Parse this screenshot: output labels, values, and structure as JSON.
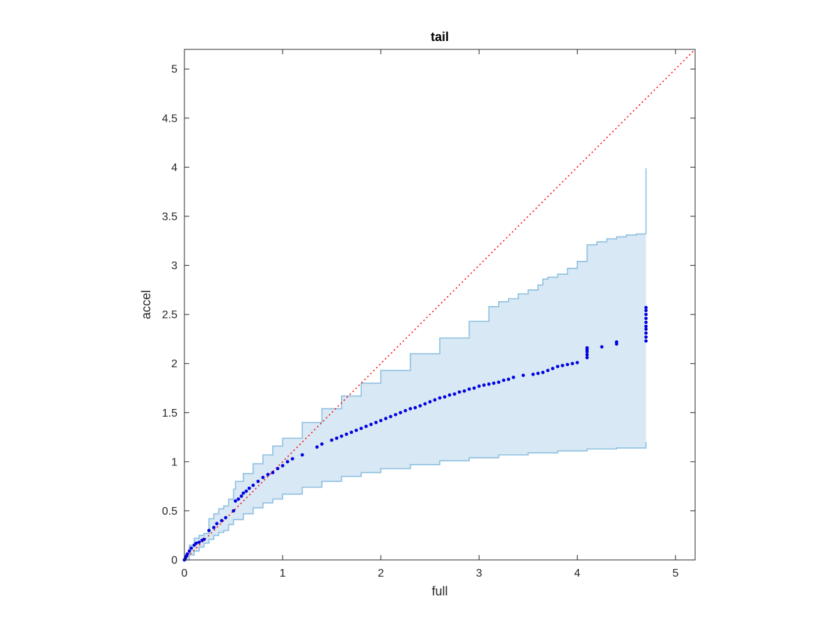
{
  "chart_data": {
    "type": "scatter",
    "title": "tail",
    "xlabel": "full",
    "ylabel": "accel",
    "xlim": [
      0,
      5.2
    ],
    "ylim": [
      0,
      5.2
    ],
    "xticks": [
      0,
      1,
      2,
      3,
      4,
      5
    ],
    "yticks": [
      0,
      0.5,
      1,
      1.5,
      2,
      2.5,
      3,
      3.5,
      4,
      4.5,
      5
    ],
    "xtick_labels": [
      "0",
      "1",
      "2",
      "3",
      "4",
      "5"
    ],
    "ytick_labels": [
      "0",
      "0.5",
      "1",
      "1.5",
      "2",
      "2.5",
      "3",
      "3.5",
      "4",
      "4.5",
      "5"
    ],
    "grid": false,
    "box": true,
    "colors": {
      "points": "#0000e0",
      "band_fill": "#d8e8f4",
      "band_edge": "#8cbfe0",
      "reference_line": "#ff0000"
    },
    "reference_line": {
      "style": "dotted",
      "x": [
        0,
        5.2
      ],
      "y": [
        0,
        5.2
      ]
    },
    "band_upper": {
      "x": [
        0,
        0.02,
        0.05,
        0.1,
        0.15,
        0.2,
        0.25,
        0.3,
        0.35,
        0.4,
        0.45,
        0.5,
        0.52,
        0.6,
        0.7,
        0.8,
        0.9,
        1.0,
        1.2,
        1.4,
        1.6,
        1.8,
        2.0,
        2.3,
        2.6,
        2.9,
        3.1,
        3.2,
        3.3,
        3.4,
        3.5,
        3.6,
        3.65,
        3.7,
        3.8,
        3.9,
        4.0,
        4.05,
        4.1,
        4.2,
        4.3,
        4.4,
        4.5,
        4.6,
        4.7
      ],
      "y": [
        0.0,
        0.06,
        0.15,
        0.22,
        0.25,
        0.27,
        0.42,
        0.47,
        0.52,
        0.55,
        0.62,
        0.72,
        0.8,
        0.88,
        0.98,
        1.07,
        1.16,
        1.24,
        1.4,
        1.54,
        1.67,
        1.8,
        1.93,
        2.1,
        2.26,
        2.43,
        2.58,
        2.63,
        2.66,
        2.71,
        2.75,
        2.8,
        2.86,
        2.88,
        2.91,
        2.97,
        3.04,
        3.04,
        3.21,
        3.24,
        3.27,
        3.29,
        3.31,
        3.32,
        3.32
      ]
    },
    "band_lower": {
      "x": [
        0,
        0.05,
        0.1,
        0.15,
        0.2,
        0.25,
        0.3,
        0.35,
        0.4,
        0.45,
        0.5,
        0.6,
        0.7,
        0.8,
        0.9,
        1.0,
        1.2,
        1.4,
        1.6,
        1.8,
        2.0,
        2.3,
        2.6,
        2.9,
        3.2,
        3.5,
        3.8,
        4.1,
        4.4,
        4.7
      ],
      "y": [
        0.0,
        0.05,
        0.09,
        0.13,
        0.17,
        0.21,
        0.25,
        0.28,
        0.3,
        0.36,
        0.41,
        0.47,
        0.53,
        0.58,
        0.62,
        0.67,
        0.74,
        0.8,
        0.85,
        0.89,
        0.93,
        0.97,
        1.01,
        1.04,
        1.07,
        1.09,
        1.11,
        1.13,
        1.14,
        1.15
      ]
    },
    "band_spike": {
      "x": 4.7,
      "y": [
        3.32,
        3.99
      ]
    },
    "band_low_tick": {
      "x": 4.7,
      "y": [
        1.15,
        1.2
      ]
    },
    "x": [
      0.0,
      0.01,
      0.02,
      0.03,
      0.05,
      0.07,
      0.1,
      0.12,
      0.15,
      0.18,
      0.2,
      0.25,
      0.3,
      0.33,
      0.38,
      0.42,
      0.5,
      0.52,
      0.55,
      0.58,
      0.6,
      0.63,
      0.66,
      0.7,
      0.75,
      0.8,
      0.85,
      0.9,
      0.95,
      1.0,
      1.05,
      1.1,
      1.2,
      1.35,
      1.4,
      1.5,
      1.55,
      1.6,
      1.65,
      1.7,
      1.75,
      1.8,
      1.85,
      1.9,
      1.95,
      2.0,
      2.05,
      2.1,
      2.15,
      2.2,
      2.25,
      2.3,
      2.35,
      2.4,
      2.45,
      2.5,
      2.55,
      2.6,
      2.65,
      2.7,
      2.75,
      2.8,
      2.85,
      2.9,
      2.95,
      3.0,
      3.05,
      3.1,
      3.15,
      3.2,
      3.25,
      3.3,
      3.35,
      3.45,
      3.55,
      3.6,
      3.65,
      3.7,
      3.75,
      3.8,
      3.85,
      3.9,
      3.95,
      4.0,
      4.1,
      4.1,
      4.1,
      4.1,
      4.1,
      4.25,
      4.4,
      4.4,
      4.7,
      4.7,
      4.7,
      4.7,
      4.7,
      4.7,
      4.7,
      4.7,
      4.7,
      4.7
    ],
    "y": [
      0.0,
      0.02,
      0.04,
      0.06,
      0.09,
      0.12,
      0.15,
      0.17,
      0.18,
      0.2,
      0.21,
      0.3,
      0.33,
      0.37,
      0.4,
      0.43,
      0.5,
      0.6,
      0.62,
      0.65,
      0.68,
      0.7,
      0.73,
      0.76,
      0.8,
      0.84,
      0.87,
      0.89,
      0.93,
      0.96,
      1.0,
      1.03,
      1.07,
      1.15,
      1.18,
      1.22,
      1.24,
      1.26,
      1.28,
      1.3,
      1.32,
      1.34,
      1.36,
      1.38,
      1.4,
      1.42,
      1.44,
      1.46,
      1.48,
      1.5,
      1.52,
      1.54,
      1.55,
      1.57,
      1.59,
      1.61,
      1.63,
      1.65,
      1.66,
      1.68,
      1.69,
      1.71,
      1.72,
      1.74,
      1.75,
      1.77,
      1.78,
      1.79,
      1.8,
      1.81,
      1.83,
      1.84,
      1.86,
      1.88,
      1.89,
      1.9,
      1.91,
      1.93,
      1.95,
      1.97,
      1.98,
      1.99,
      2.0,
      2.01,
      2.06,
      2.09,
      2.12,
      2.14,
      2.16,
      2.17,
      2.2,
      2.22,
      2.23,
      2.27,
      2.31,
      2.35,
      2.38,
      2.42,
      2.46,
      2.5,
      2.54,
      2.57
    ]
  }
}
